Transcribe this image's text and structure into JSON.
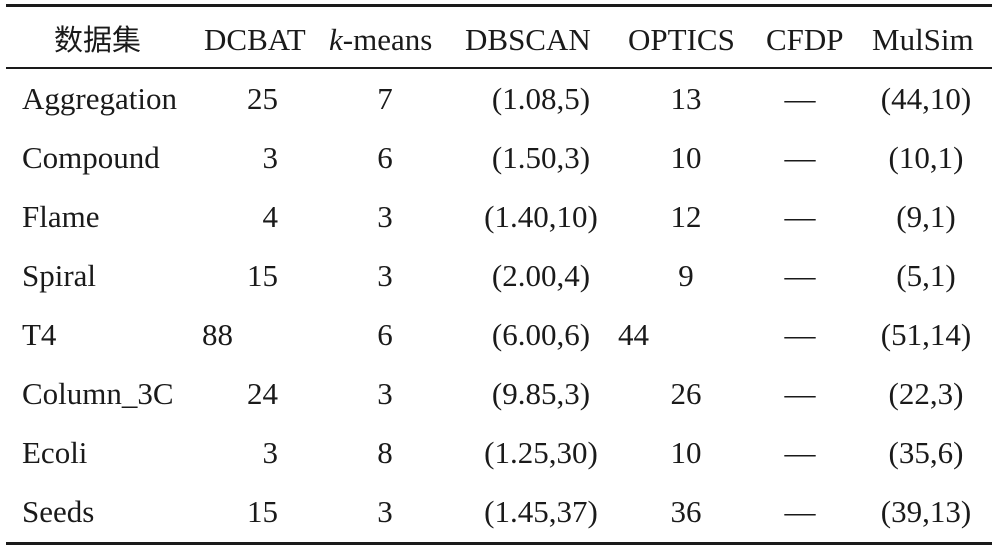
{
  "table": {
    "headers": {
      "dataset": "数据集",
      "dcbat": "DCBAT",
      "kmeans_k": "k",
      "kmeans_rest": "-means",
      "dbscan": "DBSCAN",
      "optics": "OPTICS",
      "cfdp": "CFDP",
      "mulsim": "MulSim"
    },
    "rows": [
      {
        "name": "Aggregation",
        "dcbat": "25",
        "kmeans": "7",
        "dbscan": "(1.08,5)",
        "optics": "13",
        "cfdp": "—",
        "mulsim": "(44,10)"
      },
      {
        "name": "Compound",
        "dcbat": "3",
        "kmeans": "6",
        "dbscan": "(1.50,3)",
        "optics": "10",
        "cfdp": "—",
        "mulsim": "(10,1)"
      },
      {
        "name": "Flame",
        "dcbat": "4",
        "kmeans": "3",
        "dbscan": "(1.40,10)",
        "optics": "12",
        "cfdp": "—",
        "mulsim": "(9,1)"
      },
      {
        "name": "Spiral",
        "dcbat": "15",
        "kmeans": "3",
        "dbscan": "(2.00,4)",
        "optics": "9",
        "cfdp": "—",
        "mulsim": "(5,1)"
      },
      {
        "name": "T4",
        "dcbat": "88",
        "kmeans": "6",
        "dbscan": "(6.00,6)",
        "optics": "44",
        "cfdp": "—",
        "mulsim": "(51,14)"
      },
      {
        "name": "Column_3C",
        "dcbat": "24",
        "kmeans": "3",
        "dbscan": "(9.85,3)",
        "optics": "26",
        "cfdp": "—",
        "mulsim": "(22,3)"
      },
      {
        "name": "Ecoli",
        "dcbat": "3",
        "kmeans": "8",
        "dbscan": "(1.25,30)",
        "optics": "10",
        "cfdp": "—",
        "mulsim": "(35,6)"
      },
      {
        "name": "Seeds",
        "dcbat": "15",
        "kmeans": "3",
        "dbscan": "(1.45,37)",
        "optics": "36",
        "cfdp": "—",
        "mulsim": "(39,13)"
      }
    ]
  }
}
